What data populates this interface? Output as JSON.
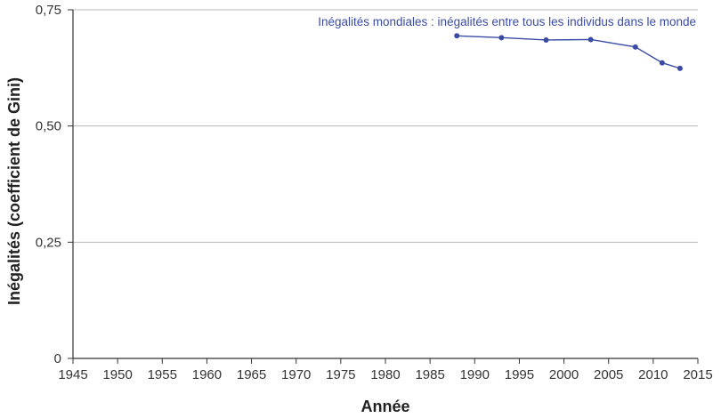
{
  "chart_data": {
    "type": "line",
    "xlabel": "Année",
    "ylabel": "Inégalités (coefficient de Gini)",
    "xlim": [
      1945,
      2015
    ],
    "ylim": [
      0,
      0.75
    ],
    "x_ticks": [
      1945,
      1950,
      1955,
      1960,
      1965,
      1970,
      1975,
      1980,
      1985,
      1990,
      1995,
      2000,
      2005,
      2010,
      2015
    ],
    "x_tick_labels": [
      "1945",
      "1950",
      "1955",
      "1960",
      "1965",
      "1970",
      "1975",
      "1980",
      "1985",
      "1990",
      "1995",
      "2000",
      "2005",
      "2010",
      "2015"
    ],
    "y_ticks": [
      0,
      0.25,
      0.5,
      0.75
    ],
    "y_tick_labels": [
      "0",
      "0,25",
      "0,50",
      "0,75"
    ],
    "grid": "horizontal",
    "series": [
      {
        "name": "Inégalités mondiales : inégalités entre tous les individus dans le monde",
        "color": "#3a4ba6",
        "x": [
          1988,
          1993,
          1998,
          2003,
          2008,
          2011,
          2013
        ],
        "y": [
          0.694,
          0.69,
          0.685,
          0.686,
          0.67,
          0.636,
          0.624
        ]
      }
    ]
  }
}
